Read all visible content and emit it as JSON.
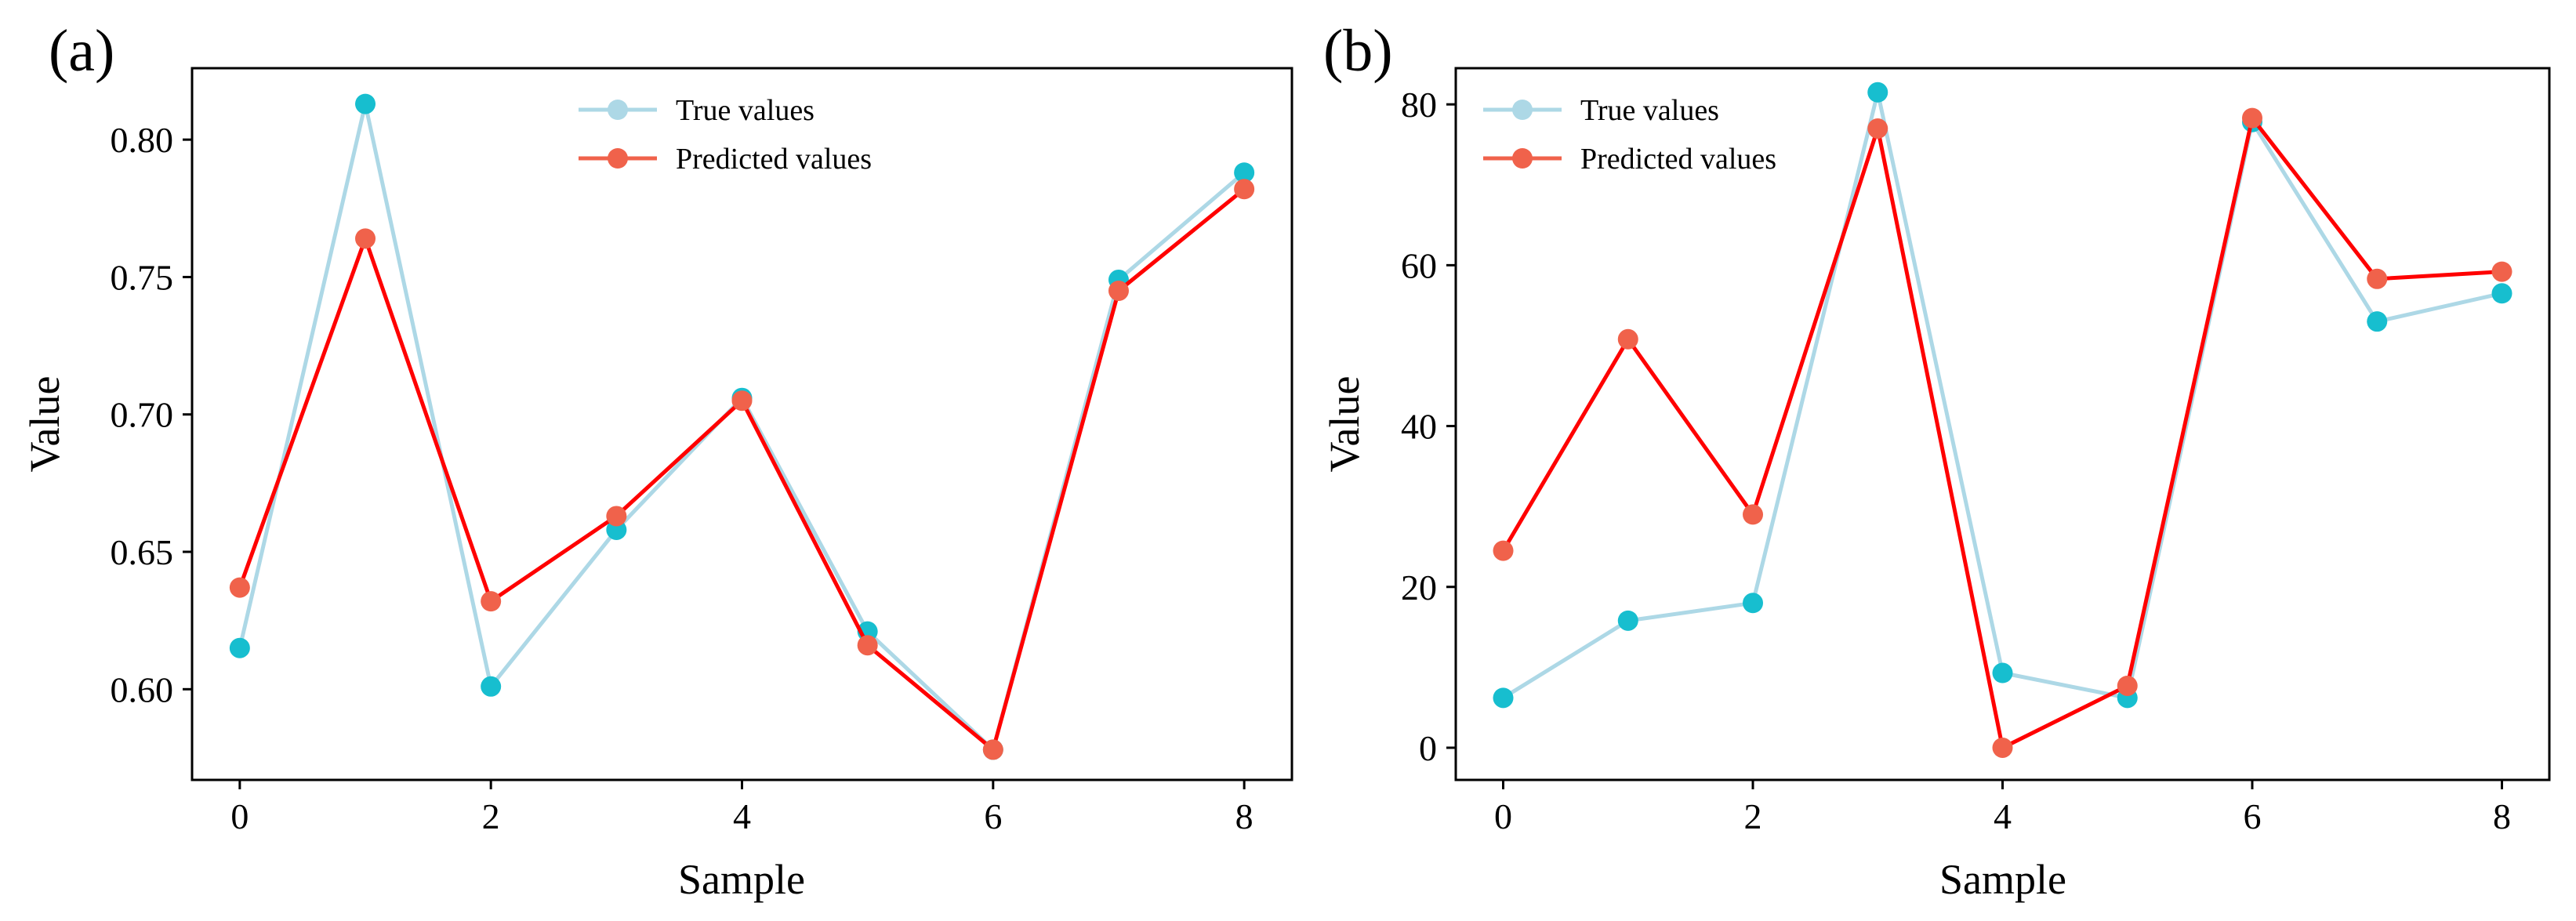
{
  "colors": {
    "true_line": "#add8e6",
    "true_marker": "#17becf",
    "pred_line": "#ff0000",
    "pred_marker": "#f0624b"
  },
  "chart_data": [
    {
      "type": "line",
      "panel_label": "(a)",
      "xlabel": "Sample",
      "ylabel": "Value",
      "x": [
        0,
        1,
        2,
        3,
        4,
        5,
        6,
        7,
        8
      ],
      "xlim": [
        -0.38,
        8.38
      ],
      "ylim": [
        0.567,
        0.826
      ],
      "xticks": [
        0,
        2,
        4,
        6,
        8
      ],
      "xtick_labels": [
        "0",
        "2",
        "4",
        "6",
        "8"
      ],
      "yticks": [
        0.6,
        0.65,
        0.7,
        0.75,
        0.8
      ],
      "ytick_labels": [
        "0.60",
        "0.65",
        "0.70",
        "0.75",
        "0.80"
      ],
      "legend_position": "top-center",
      "series": [
        {
          "name": "True values",
          "values": [
            0.615,
            0.813,
            0.601,
            0.658,
            0.706,
            0.621,
            0.578,
            0.749,
            0.788
          ]
        },
        {
          "name": "Predicted values",
          "values": [
            0.637,
            0.764,
            0.632,
            0.663,
            0.705,
            0.616,
            0.578,
            0.745,
            0.782
          ]
        }
      ]
    },
    {
      "type": "line",
      "panel_label": "(b)",
      "xlabel": "Sample",
      "ylabel": "Value",
      "x": [
        0,
        1,
        2,
        3,
        4,
        5,
        6,
        7,
        8
      ],
      "xlim": [
        -0.38,
        8.38
      ],
      "ylim": [
        -4.0,
        84.5
      ],
      "xticks": [
        0,
        2,
        4,
        6,
        8
      ],
      "xtick_labels": [
        "0",
        "2",
        "4",
        "6",
        "8"
      ],
      "yticks": [
        0,
        20,
        40,
        60,
        80
      ],
      "ytick_labels": [
        "0",
        "20",
        "40",
        "60",
        "80"
      ],
      "legend_position": "top-left",
      "series": [
        {
          "name": "True values",
          "values": [
            6.2,
            15.8,
            18.0,
            81.5,
            9.3,
            6.2,
            77.8,
            53.0,
            56.5
          ]
        },
        {
          "name": "Predicted values",
          "values": [
            24.5,
            50.8,
            29.0,
            77.0,
            0.0,
            7.7,
            78.3,
            58.3,
            59.2
          ]
        }
      ]
    }
  ]
}
